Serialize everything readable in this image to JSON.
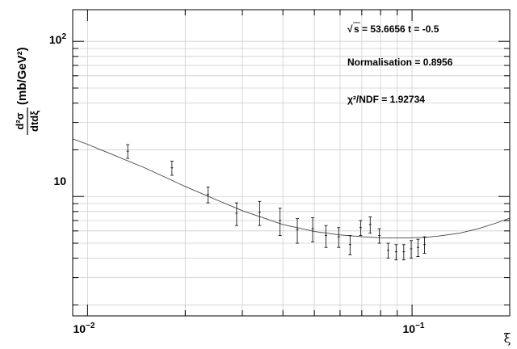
{
  "chart_data": {
    "type": "scatter",
    "x_scale": "log",
    "y_scale": "log",
    "xlim": [
      0.009,
      0.2
    ],
    "ylim": [
      1.7,
      160
    ],
    "grid": true,
    "xlabel": "ξ",
    "ylabel": {
      "numerator": "d²σ",
      "denominator": "dtdξ",
      "unit": "(mb/GeV²)"
    },
    "x_ticks": [
      {
        "value": 0.01,
        "base": "10",
        "exp": "−2"
      },
      {
        "value": 0.1,
        "base": "10",
        "exp": "−1"
      }
    ],
    "y_ticks": [
      {
        "value": 10,
        "label": "10"
      },
      {
        "value": 100,
        "base": "10",
        "exp": "2"
      }
    ],
    "annotations": {
      "sqrt_symbol": "√",
      "energy": "s = 53.6656 t = -0.5",
      "normalisation": "Normalisation = 0.8956",
      "chi2": "χ²/NDF = 1.92734"
    },
    "series": [
      {
        "type": "points",
        "x": [
          0.0133,
          0.0182,
          0.0235,
          0.0288,
          0.0339,
          0.0392,
          0.0443,
          0.0494,
          0.0543,
          0.0594,
          0.0644,
          0.0694,
          0.0743,
          0.0793,
          0.0844,
          0.0893,
          0.0943,
          0.0994,
          0.1043,
          0.1093
        ],
        "y": [
          19.6,
          15.3,
          10.3,
          7.8,
          7.9,
          7.0,
          6.1,
          6.2,
          5.6,
          5.5,
          4.9,
          6.3,
          6.6,
          5.6,
          4.5,
          4.4,
          4.4,
          4.6,
          4.7,
          4.9
        ],
        "err": [
          2.0,
          1.6,
          1.2,
          1.3,
          1.4,
          1.4,
          1.1,
          1.1,
          0.9,
          0.8,
          0.7,
          0.7,
          0.8,
          0.6,
          0.5,
          0.5,
          0.5,
          0.6,
          0.6,
          0.6
        ]
      },
      {
        "type": "fit-curve",
        "x": [
          0.009,
          0.01,
          0.015,
          0.02,
          0.025,
          0.03,
          0.04,
          0.05,
          0.06,
          0.07,
          0.08,
          0.09,
          0.1,
          0.11,
          0.12,
          0.14,
          0.16,
          0.18,
          0.2
        ],
        "y": [
          23.5,
          21.7,
          15.3,
          11.6,
          9.5,
          8.1,
          6.6,
          5.95,
          5.65,
          5.5,
          5.42,
          5.4,
          5.42,
          5.45,
          5.55,
          5.8,
          6.2,
          6.7,
          7.25
        ]
      }
    ]
  }
}
